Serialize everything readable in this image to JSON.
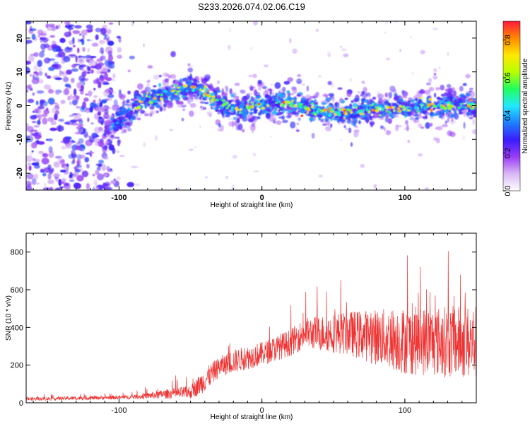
{
  "chart_data": [
    {
      "type": "heatmap",
      "title": "S233.2026.074.02.06.C19",
      "xlabel": "Height of straight line (km)",
      "ylabel": "Frequency (Hz)",
      "xlim": [
        -165,
        150
      ],
      "ylim": [
        -25,
        25
      ],
      "xticks": [
        -100,
        0,
        100
      ],
      "yticks": [
        -20,
        -10,
        0,
        10,
        20
      ],
      "colorbar": {
        "label": "Normalized spectral amplitude",
        "range": [
          0,
          0.9
        ],
        "ticks": [
          "0.0",
          "0.2",
          "0.4",
          "0.6",
          "0.8"
        ],
        "stops": [
          "#ffffff",
          "#d9b8f5",
          "#9a3df5",
          "#3a1cff",
          "#1f7fff",
          "#22e8ff",
          "#20ff60",
          "#b8ff00",
          "#ffe800",
          "#ff8a00",
          "#ff1a3c"
        ]
      },
      "ridge": {
        "x": [
          -165,
          -110,
          -100,
          -90,
          -80,
          -60,
          -50,
          -40,
          -30,
          -20,
          0,
          20,
          40,
          60,
          80,
          100,
          120,
          150
        ],
        "freq": [
          -8,
          -7,
          -5,
          -1,
          2,
          4,
          6,
          4,
          1,
          -1,
          0,
          1,
          -2,
          -2,
          -1,
          -1,
          0,
          0
        ]
      }
    },
    {
      "type": "line",
      "xlabel": "Height of straight line (km)",
      "ylabel": "SNR (10 * v/v)",
      "xlim": [
        -165,
        150
      ],
      "ylim": [
        0,
        900
      ],
      "xticks": [
        -100,
        0,
        100
      ],
      "yticks": [
        0,
        200,
        400,
        600,
        800
      ],
      "color": "#ee3333",
      "envelope": {
        "x": [
          -165,
          -90,
          -70,
          -50,
          -40,
          -30,
          -20,
          0,
          20,
          30,
          60,
          100,
          150
        ],
        "mean": [
          20,
          30,
          45,
          55,
          120,
          190,
          220,
          260,
          320,
          370,
          370,
          330,
          320
        ],
        "spread": [
          10,
          12,
          25,
          40,
          70,
          60,
          70,
          70,
          80,
          90,
          130,
          200,
          220
        ]
      }
    }
  ]
}
